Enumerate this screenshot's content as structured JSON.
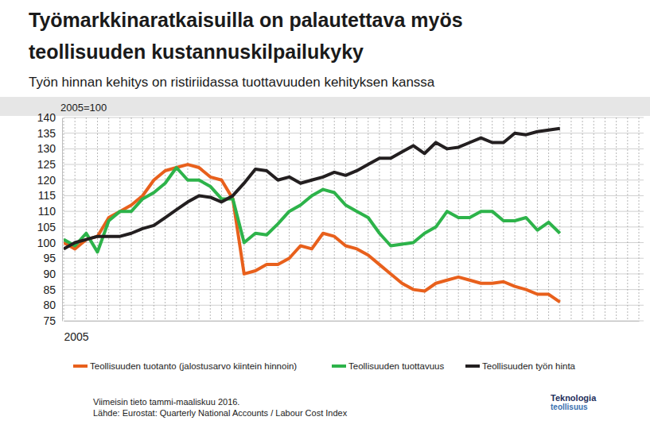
{
  "chart_data": {
    "type": "line",
    "title": [
      "Työmarkkinaratkaisuilla on palautettava myös",
      "teollisuuden kustannuskilpailukyky"
    ],
    "subtitle": "Työn hinnan kehitys on ristiriidassa tuottavuuden kehityksen kanssa",
    "annotation": "2005=100",
    "categories": [
      "2005",
      null,
      null,
      null,
      null,
      null,
      null,
      null,
      null,
      null,
      null,
      null,
      null,
      null,
      null,
      null,
      null,
      null,
      null,
      null,
      null,
      null,
      null,
      null,
      null,
      null,
      null,
      null,
      null,
      null,
      null,
      null,
      null,
      null,
      null,
      null,
      null,
      null,
      null,
      null,
      null,
      null,
      null,
      null,
      null,
      null,
      null,
      null,
      null,
      null,
      null,
      null
    ],
    "ylim": [
      75,
      140
    ],
    "yticks": [
      75,
      80,
      85,
      90,
      95,
      100,
      105,
      110,
      115,
      120,
      125,
      130,
      135,
      140
    ],
    "grid": true,
    "legend": "bottom",
    "series": [
      {
        "name": "Teollisuuden tuotanto (jalostusarvo kiintein hinnoin)",
        "color": "#e8601c",
        "values": [
          100,
          98,
          101,
          102,
          108,
          110,
          112,
          115,
          120,
          123,
          124,
          125,
          124,
          121,
          120,
          114,
          90,
          91,
          93,
          93,
          95,
          99,
          98,
          103,
          102,
          99,
          98,
          96,
          93,
          90,
          87,
          85,
          84.5,
          87,
          88,
          89,
          88,
          87,
          87,
          87.5,
          86,
          85,
          83.5,
          83.5,
          81,
          null,
          null,
          null,
          null,
          null,
          null,
          null
        ]
      },
      {
        "name": "Teollisuuden tuottavuus",
        "color": "#2db34a",
        "values": [
          101,
          99,
          103,
          97,
          107,
          110,
          110,
          114,
          116,
          119,
          124,
          120,
          120,
          118,
          114,
          114,
          100,
          103,
          102.5,
          106,
          110,
          112,
          115,
          117,
          116,
          112,
          110,
          108,
          103,
          99,
          99.5,
          100,
          103,
          105,
          110,
          108,
          108,
          110,
          110,
          107,
          107,
          108,
          104,
          106.5,
          103,
          null,
          null,
          null,
          null,
          null,
          null,
          null
        ]
      },
      {
        "name": "Teollisuuden työn hinta",
        "color": "#231f20",
        "values": [
          98,
          100,
          101,
          102,
          102,
          102,
          103,
          104.5,
          105.5,
          108,
          110.5,
          113,
          115,
          114.5,
          113,
          115,
          119,
          123.5,
          123,
          120,
          121,
          119,
          120,
          121,
          122.5,
          121.5,
          123,
          125,
          127,
          127,
          129,
          131,
          128.5,
          132,
          130,
          130.5,
          132,
          133.5,
          132,
          132,
          135,
          134.5,
          135.5,
          136,
          136.5,
          null,
          null,
          null,
          null,
          null,
          null,
          null
        ]
      }
    ],
    "notes": [
      "Viimeisin tieto tammi-maaliskuu 2016.",
      "Lähde: Eurostat: Quarterly National Accounts / Labour Cost Index"
    ],
    "logo": [
      "Teknologia",
      "teollisuus"
    ]
  }
}
